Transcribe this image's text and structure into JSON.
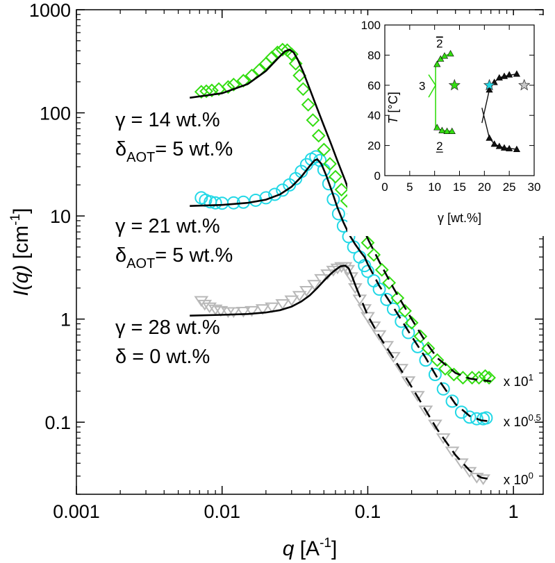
{
  "chart_data": {
    "type": "scatter",
    "xscale": "log",
    "yscale": "log",
    "xlim": [
      0.001,
      1.6
    ],
    "ylim": [
      0.02,
      1000
    ],
    "xticks": [
      {
        "value": 0.001,
        "label": "0.001"
      },
      {
        "value": 0.01,
        "label": "0.01"
      },
      {
        "value": 0.1,
        "label": "0.1"
      },
      {
        "value": 1,
        "label": "1"
      }
    ],
    "yticks": [
      {
        "value": 0.1,
        "label": "0.1"
      },
      {
        "value": 1,
        "label": "1"
      },
      {
        "value": 10,
        "label": "10"
      },
      {
        "value": 100,
        "label": "100"
      },
      {
        "value": 1000,
        "label": "1000"
      }
    ],
    "xlabel": {
      "var": "q",
      "unit": " [A",
      "exp": "-1",
      "close": "]"
    },
    "ylabel": {
      "var": "I(q)",
      "unit": " [cm",
      "exp": "-1",
      "close": "]"
    },
    "series": [
      {
        "name": "γ = 28 wt.%, δ = 0 wt.%",
        "color": "#b8b8b8",
        "marker": "triangle-down",
        "multiplier": {
          "base": "x 10",
          "exp": "0"
        },
        "data": [
          [
            0.0072,
            1.5
          ],
          [
            0.0076,
            1.38
          ],
          [
            0.0082,
            1.3
          ],
          [
            0.009,
            1.24
          ],
          [
            0.0098,
            1.2
          ],
          [
            0.011,
            1.17
          ],
          [
            0.012,
            1.17
          ],
          [
            0.014,
            1.18
          ],
          [
            0.016,
            1.2
          ],
          [
            0.019,
            1.25
          ],
          [
            0.022,
            1.3
          ],
          [
            0.026,
            1.4
          ],
          [
            0.03,
            1.52
          ],
          [
            0.034,
            1.68
          ],
          [
            0.038,
            1.88
          ],
          [
            0.043,
            2.15
          ],
          [
            0.048,
            2.45
          ],
          [
            0.053,
            2.72
          ],
          [
            0.058,
            2.95
          ],
          [
            0.062,
            3.1
          ],
          [
            0.066,
            3.2
          ],
          [
            0.07,
            3.2
          ],
          [
            0.073,
            3.0
          ],
          [
            0.077,
            2.55
          ],
          [
            0.082,
            2.0
          ],
          [
            0.088,
            1.55
          ],
          [
            0.095,
            1.25
          ],
          [
            0.1,
            1.05
          ],
          [
            0.11,
            0.85
          ],
          [
            0.12,
            0.7
          ],
          [
            0.135,
            0.55
          ],
          [
            0.15,
            0.43
          ],
          [
            0.17,
            0.33
          ],
          [
            0.19,
            0.25
          ],
          [
            0.22,
            0.18
          ],
          [
            0.25,
            0.13
          ],
          [
            0.29,
            0.095
          ],
          [
            0.33,
            0.07
          ],
          [
            0.38,
            0.052
          ],
          [
            0.44,
            0.04
          ],
          [
            0.5,
            0.033
          ],
          [
            0.56,
            0.029
          ],
          [
            0.62,
            0.028
          ]
        ],
        "fit": [
          [
            0.006,
            1.08
          ],
          [
            0.01,
            1.1
          ],
          [
            0.015,
            1.12
          ],
          [
            0.02,
            1.16
          ],
          [
            0.025,
            1.22
          ],
          [
            0.03,
            1.32
          ],
          [
            0.035,
            1.48
          ],
          [
            0.04,
            1.7
          ],
          [
            0.045,
            2.0
          ],
          [
            0.05,
            2.35
          ],
          [
            0.055,
            2.7
          ],
          [
            0.06,
            3.0
          ],
          [
            0.065,
            3.25
          ],
          [
            0.07,
            3.3
          ],
          [
            0.074,
            3.1
          ],
          [
            0.078,
            2.6
          ],
          [
            0.083,
            2.05
          ]
        ],
        "fit_dashed": [
          [
            0.083,
            2.05
          ],
          [
            0.09,
            1.55
          ],
          [
            0.1,
            1.08
          ],
          [
            0.12,
            0.68
          ],
          [
            0.15,
            0.42
          ],
          [
            0.2,
            0.22
          ],
          [
            0.25,
            0.13
          ],
          [
            0.3,
            0.085
          ],
          [
            0.4,
            0.048
          ],
          [
            0.5,
            0.034
          ],
          [
            0.6,
            0.029
          ],
          [
            0.7,
            0.028
          ]
        ]
      },
      {
        "name": "γ = 21 wt.%, δAOT = 5 wt.%",
        "color": "#22d8e6",
        "marker": "circle",
        "multiplier": {
          "base": "x 10",
          "exp": "0.5"
        },
        "data": [
          [
            0.0072,
            15
          ],
          [
            0.0077,
            14.2
          ],
          [
            0.0083,
            13.7
          ],
          [
            0.009,
            13.4
          ],
          [
            0.01,
            13.3
          ],
          [
            0.012,
            13.4
          ],
          [
            0.014,
            13.6
          ],
          [
            0.017,
            14.2
          ],
          [
            0.02,
            15.0
          ],
          [
            0.023,
            16.2
          ],
          [
            0.026,
            17.8
          ],
          [
            0.029,
            20.0
          ],
          [
            0.032,
            23.0
          ],
          [
            0.035,
            27.0
          ],
          [
            0.038,
            31.5
          ],
          [
            0.041,
            35.5
          ],
          [
            0.044,
            37.5
          ],
          [
            0.047,
            34.5
          ],
          [
            0.05,
            28.0
          ],
          [
            0.054,
            20.5
          ],
          [
            0.058,
            14.5
          ],
          [
            0.063,
            10.5
          ],
          [
            0.068,
            8.0
          ],
          [
            0.074,
            6.3
          ],
          [
            0.08,
            5.0
          ],
          [
            0.088,
            4.0
          ],
          [
            0.095,
            3.3
          ],
          [
            0.1,
            2.9
          ],
          [
            0.11,
            2.35
          ],
          [
            0.12,
            1.95
          ],
          [
            0.135,
            1.55
          ],
          [
            0.15,
            1.25
          ],
          [
            0.17,
            0.95
          ],
          [
            0.19,
            0.74
          ],
          [
            0.22,
            0.54
          ],
          [
            0.25,
            0.4
          ],
          [
            0.29,
            0.29
          ],
          [
            0.33,
            0.21
          ],
          [
            0.38,
            0.16
          ],
          [
            0.44,
            0.125
          ],
          [
            0.5,
            0.112
          ],
          [
            0.56,
            0.108
          ],
          [
            0.62,
            0.108
          ],
          [
            0.65,
            0.11
          ]
        ],
        "fit": [
          [
            0.006,
            12.5
          ],
          [
            0.01,
            12.8
          ],
          [
            0.015,
            13.4
          ],
          [
            0.02,
            14.4
          ],
          [
            0.025,
            16.2
          ],
          [
            0.03,
            19.2
          ],
          [
            0.035,
            24.0
          ],
          [
            0.04,
            30.5
          ],
          [
            0.043,
            34.5
          ],
          [
            0.045,
            35.5
          ],
          [
            0.048,
            32.0
          ],
          [
            0.052,
            24.5
          ],
          [
            0.057,
            17.0
          ],
          [
            0.062,
            12.0
          ],
          [
            0.068,
            8.7
          ],
          [
            0.075,
            6.5
          ],
          [
            0.082,
            5.3
          ],
          [
            0.09,
            4.4
          ],
          [
            0.095,
            4.0
          ],
          [
            0.1,
            3.4
          ]
        ],
        "fit_dashed": [
          [
            0.1,
            3.4
          ],
          [
            0.12,
            2.1
          ],
          [
            0.15,
            1.3
          ],
          [
            0.2,
            0.68
          ],
          [
            0.25,
            0.42
          ],
          [
            0.3,
            0.27
          ],
          [
            0.4,
            0.15
          ],
          [
            0.5,
            0.115
          ],
          [
            0.6,
            0.104
          ],
          [
            0.7,
            0.102
          ]
        ]
      },
      {
        "name": "γ = 14 wt.%, δAOT = 5 wt.%",
        "color": "#33dd11",
        "marker": "diamond",
        "multiplier": {
          "base": "x 10",
          "exp": "1"
        },
        "data": [
          [
            0.0072,
            160
          ],
          [
            0.0078,
            162
          ],
          [
            0.0085,
            165
          ],
          [
            0.0095,
            170
          ],
          [
            0.011,
            178
          ],
          [
            0.012,
            188
          ],
          [
            0.014,
            205
          ],
          [
            0.016,
            230
          ],
          [
            0.018,
            260
          ],
          [
            0.02,
            300
          ],
          [
            0.022,
            345
          ],
          [
            0.024,
            385
          ],
          [
            0.026,
            410
          ],
          [
            0.028,
            405
          ],
          [
            0.03,
            370
          ],
          [
            0.032,
            300
          ],
          [
            0.034,
            230
          ],
          [
            0.036,
            170
          ],
          [
            0.039,
            120
          ],
          [
            0.042,
            85
          ],
          [
            0.046,
            60
          ],
          [
            0.05,
            44
          ],
          [
            0.055,
            32
          ],
          [
            0.06,
            24
          ],
          [
            0.066,
            18
          ],
          [
            0.072,
            14
          ],
          [
            0.08,
            10.5
          ],
          [
            0.09,
            7.5
          ],
          [
            0.1,
            5.5
          ],
          [
            0.11,
            4.2
          ],
          [
            0.125,
            3.0
          ],
          [
            0.14,
            2.25
          ],
          [
            0.16,
            1.6
          ],
          [
            0.18,
            1.2
          ],
          [
            0.2,
            0.92
          ],
          [
            0.23,
            0.68
          ],
          [
            0.26,
            0.52
          ],
          [
            0.3,
            0.4
          ],
          [
            0.34,
            0.33
          ],
          [
            0.39,
            0.29
          ],
          [
            0.45,
            0.27
          ],
          [
            0.52,
            0.27
          ],
          [
            0.58,
            0.27
          ],
          [
            0.64,
            0.28
          ],
          [
            0.68,
            0.27
          ]
        ],
        "fit": [
          [
            0.006,
            140
          ],
          [
            0.01,
            155
          ],
          [
            0.015,
            190
          ],
          [
            0.02,
            255
          ],
          [
            0.024,
            335
          ],
          [
            0.027,
            395
          ],
          [
            0.029,
            410
          ],
          [
            0.031,
            385
          ],
          [
            0.033,
            330
          ],
          [
            0.036,
            250
          ],
          [
            0.04,
            170
          ],
          [
            0.045,
            110
          ],
          [
            0.05,
            75
          ],
          [
            0.056,
            50
          ],
          [
            0.062,
            34
          ],
          [
            0.07,
            22
          ],
          [
            0.08,
            13
          ],
          [
            0.09,
            8.5
          ],
          [
            0.1,
            6.0
          ]
        ],
        "fit_dashed": [
          [
            0.1,
            6.0
          ],
          [
            0.12,
            3.6
          ],
          [
            0.15,
            2.0
          ],
          [
            0.2,
            1.0
          ],
          [
            0.25,
            0.6
          ],
          [
            0.3,
            0.42
          ],
          [
            0.4,
            0.3
          ],
          [
            0.5,
            0.265
          ],
          [
            0.6,
            0.255
          ],
          [
            0.7,
            0.25
          ]
        ]
      }
    ],
    "annotations": [
      {
        "gamma": "γ = 14 wt.%",
        "delta_sym": "δ",
        "delta_sub": "AOT",
        "delta_rest": "= 5 wt.%"
      },
      {
        "gamma": "γ = 21 wt.%",
        "delta_sym": "δ",
        "delta_sub": "AOT",
        "delta_rest": "= 5 wt.%"
      },
      {
        "gamma": "γ = 28 wt.%",
        "delta_sym": "δ",
        "delta_sub": "",
        "delta_rest": " = 0 wt.%"
      }
    ],
    "inset": {
      "type": "scatter",
      "xlim": [
        0,
        30
      ],
      "ylim": [
        0,
        100
      ],
      "xticks": [
        0,
        5,
        10,
        15,
        20,
        25,
        30
      ],
      "yticks": [
        0,
        20,
        40,
        60,
        80,
        100
      ],
      "xlabel": "γ [wt.%]",
      "ylabel_var": "T",
      "ylabel_unit": " [°C]",
      "green_color": "#33dd11",
      "black_color": "#111111",
      "green_upper": [
        [
          10.5,
          74
        ],
        [
          11.2,
          77.5
        ],
        [
          12.0,
          79.5
        ],
        [
          13.2,
          81
        ]
      ],
      "green_lower": [
        [
          10.5,
          32
        ],
        [
          11.5,
          30
        ],
        [
          12.5,
          29.5
        ],
        [
          13.5,
          29.5
        ]
      ],
      "green_left_line": [
        [
          10.2,
          32
        ],
        [
          10.2,
          60
        ],
        [
          10.2,
          74
        ]
      ],
      "black_upper": [
        [
          21.0,
          57
        ],
        [
          22.0,
          62
        ],
        [
          23.0,
          65
        ],
        [
          24.0,
          66
        ],
        [
          25.0,
          67
        ],
        [
          26.5,
          67.5
        ]
      ],
      "black_lower": [
        [
          21.0,
          25
        ],
        [
          22.0,
          21
        ],
        [
          23.0,
          19.5
        ],
        [
          24.0,
          18.5
        ],
        [
          25.0,
          18
        ],
        [
          26.5,
          17.5
        ]
      ],
      "stars": [
        {
          "x": 14,
          "y": 60,
          "fill": "#33dd11"
        },
        {
          "x": 21,
          "y": 60,
          "fill": "#22d8e6"
        },
        {
          "x": 28,
          "y": 60,
          "fill": "#c8c8c8"
        }
      ],
      "labels": {
        "two_bar": "2",
        "three": "3",
        "two_under": "2"
      }
    }
  }
}
